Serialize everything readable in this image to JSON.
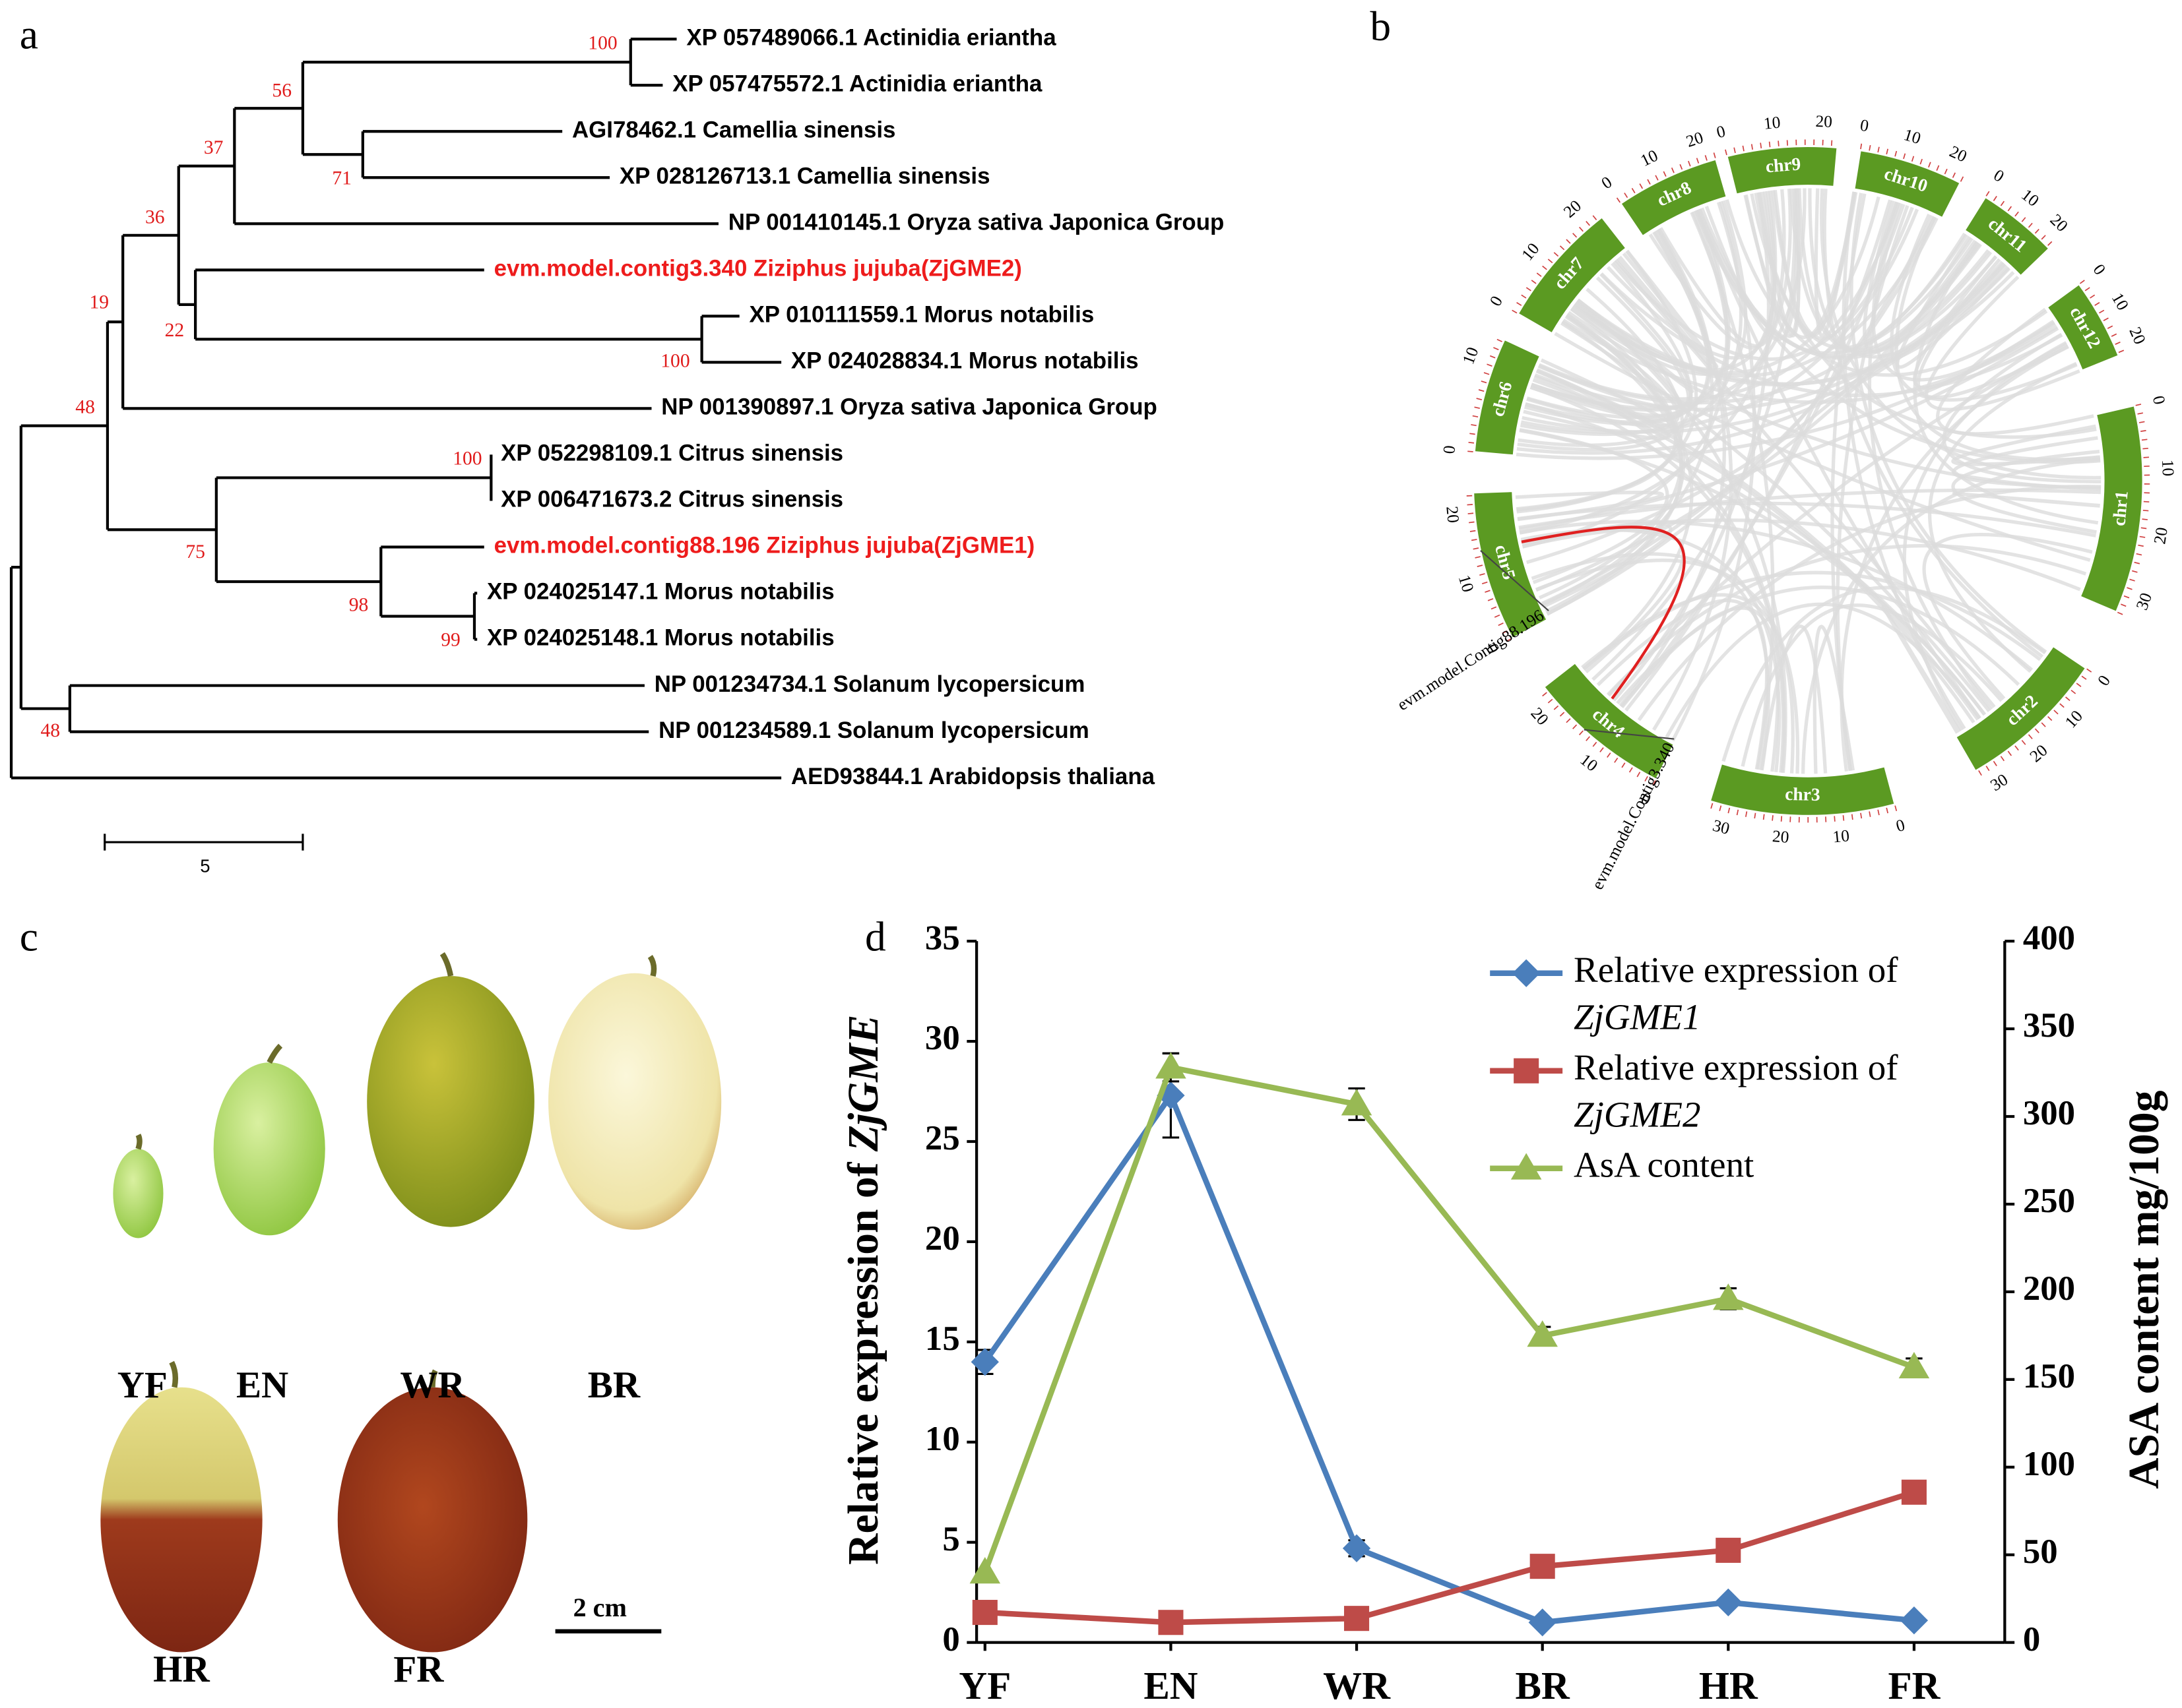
{
  "panel_labels": [
    "a",
    "b",
    "c",
    "d"
  ],
  "tree": {
    "leaves": [
      {
        "label": "XP 057489066.1 Actinidia eriantha",
        "color": "#000000"
      },
      {
        "label": "XP 057475572.1 Actinidia eriantha",
        "color": "#000000"
      },
      {
        "label": "AGI78462.1 Camellia sinensis",
        "color": "#000000"
      },
      {
        "label": "XP 028126713.1 Camellia sinensis",
        "color": "#000000"
      },
      {
        "label": "NP 001410145.1 Oryza sativa Japonica Group",
        "color": "#000000"
      },
      {
        "label": "evm.model.contig3.340 Ziziphus jujuba(ZjGME2)",
        "color": "#ee1c1c"
      },
      {
        "label": "XP 010111559.1 Morus notabilis",
        "color": "#000000"
      },
      {
        "label": "XP 024028834.1 Morus notabilis",
        "color": "#000000"
      },
      {
        "label": "NP 001390897.1 Oryza sativa Japonica Group",
        "color": "#000000"
      },
      {
        "label": "XP 052298109.1 Citrus sinensis",
        "color": "#000000"
      },
      {
        "label": "XP 006471673.2 Citrus sinensis",
        "color": "#000000"
      },
      {
        "label": "evm.model.contig88.196 Ziziphus jujuba(ZjGME1)",
        "color": "#ee1c1c"
      },
      {
        "label": "XP 024025147.1 Morus notabilis",
        "color": "#000000"
      },
      {
        "label": "XP 024025148.1 Morus notabilis",
        "color": "#000000"
      },
      {
        "label": "NP 001234734.1 Solanum lycopersicum",
        "color": "#000000"
      },
      {
        "label": "NP 001234589.1 Solanum lycopersicum",
        "color": "#000000"
      },
      {
        "label": "AED93844.1 Arabidopsis thaliana",
        "color": "#000000"
      }
    ],
    "bootstrap": [
      100,
      56,
      37,
      71,
      36,
      22,
      19,
      100,
      48,
      100,
      75,
      98,
      99,
      48
    ],
    "bootstrap_color": "#e01b1b",
    "scale_bar": 5
  },
  "circos": {
    "chromosomes": [
      {
        "name": "chr9",
        "ticks": [
          0,
          10,
          20
        ]
      },
      {
        "name": "chr10",
        "ticks": [
          0,
          10,
          20
        ]
      },
      {
        "name": "chr11",
        "ticks": [
          0,
          10,
          20
        ]
      },
      {
        "name": "chr12",
        "ticks": [
          0,
          10,
          20
        ]
      },
      {
        "name": "chr1",
        "ticks": [
          0,
          10,
          20,
          30
        ]
      },
      {
        "name": "chr2",
        "ticks": [
          0,
          10,
          20,
          30
        ]
      },
      {
        "name": "chr3",
        "ticks": [
          0,
          10,
          20,
          30
        ]
      },
      {
        "name": "chr4",
        "ticks": [
          0,
          10,
          20
        ]
      },
      {
        "name": "chr5",
        "ticks": [
          0,
          10,
          20
        ]
      },
      {
        "name": "chr6",
        "ticks": [
          0,
          10
        ]
      },
      {
        "name": "chr7",
        "ticks": [
          0,
          10,
          20
        ]
      },
      {
        "name": "chr8",
        "ticks": [
          0,
          10,
          20
        ]
      }
    ],
    "color": "#5b9a22",
    "link_color": "#e02020",
    "genes": [
      "evm.model.Contig88.196",
      "evm.model.Contig3.340"
    ]
  },
  "photos": {
    "labels": [
      "YF",
      "EN",
      "WR",
      "BR",
      "HR",
      "FR"
    ],
    "scale_label": "2 cm"
  },
  "chart_data": {
    "type": "line",
    "categories": [
      "YF",
      "EN",
      "WR",
      "BR",
      "HR",
      "FR"
    ],
    "ylabel": "Relative expression of ZjGME",
    "y2label": "ASA content mg/100g",
    "ylim": [
      0,
      35
    ],
    "yticks": [
      0,
      5,
      10,
      15,
      20,
      25,
      30,
      35
    ],
    "y2lim": [
      0,
      400
    ],
    "y2ticks": [
      0,
      50,
      100,
      150,
      200,
      250,
      300,
      350,
      400
    ],
    "series": [
      {
        "name": "Relative expression of ZjGME1",
        "color": "#4a7ebb",
        "marker": "diamond",
        "values": [
          14,
          27.3,
          4.7,
          1.0,
          2.0,
          1.1
        ],
        "errors": [
          0.6,
          2.1,
          0.4,
          0,
          0,
          0
        ]
      },
      {
        "name": "Relative expression of ZjGME2",
        "color": "#be4b48",
        "marker": "square",
        "values": [
          1.5,
          1.0,
          1.2,
          3.8,
          4.6,
          7.5
        ],
        "errors": [
          0,
          0,
          0,
          0,
          0,
          0
        ]
      },
      {
        "name": "AsA content",
        "color": "#98b954",
        "marker": "triangle",
        "axis": "y2",
        "values": [
          40,
          328,
          307,
          175,
          196,
          157
        ],
        "errors": [
          0,
          8,
          9,
          5,
          6,
          5
        ]
      }
    ]
  }
}
